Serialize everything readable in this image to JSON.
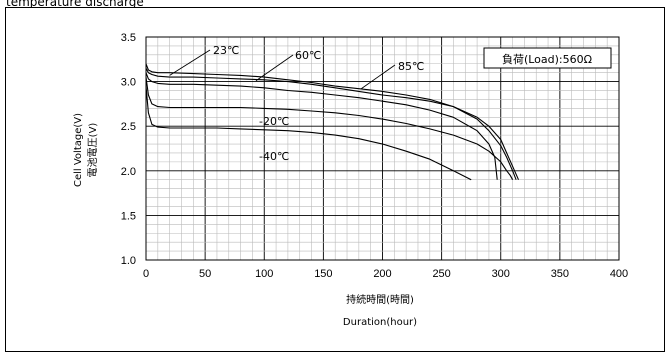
{
  "page": {
    "title": "temperature discharge"
  },
  "chart_data": {
    "type": "line",
    "xlabel_ja": "持続時間(時間)",
    "xlabel_en": "Duration(hour)",
    "ylabel_en": "Cell Voltage(V)",
    "ylabel_ja": "電池電圧(V)",
    "xlim": [
      0,
      400
    ],
    "ylim": [
      1.0,
      3.5
    ],
    "x_ticks": [
      "0",
      "50",
      "100",
      "150",
      "200",
      "250",
      "300",
      "350",
      "400"
    ],
    "y_ticks": [
      "1.0",
      "1.5",
      "2.0",
      "2.5",
      "3.0",
      "3.5"
    ],
    "grid": true,
    "load_label": "負荷(Load):560Ω",
    "series": [
      {
        "name": "23℃",
        "x": [
          0,
          2,
          5,
          10,
          20,
          40,
          60,
          80,
          100,
          120,
          140,
          160,
          180,
          200,
          220,
          240,
          260,
          280,
          290,
          300,
          305,
          310,
          313
        ],
        "y": [
          3.2,
          3.13,
          3.11,
          3.1,
          3.1,
          3.09,
          3.08,
          3.07,
          3.05,
          3.02,
          2.99,
          2.95,
          2.92,
          2.89,
          2.85,
          2.8,
          2.72,
          2.58,
          2.45,
          2.28,
          2.15,
          2.0,
          1.9
        ]
      },
      {
        "name": "60℃",
        "x": [
          0,
          2,
          5,
          10,
          20,
          40,
          60,
          80,
          100,
          120,
          140,
          160,
          180,
          200,
          220,
          240,
          260,
          280,
          290,
          300,
          305,
          310,
          315
        ],
        "y": [
          3.15,
          3.1,
          3.08,
          3.06,
          3.05,
          3.05,
          3.04,
          3.03,
          3.02,
          3.0,
          2.97,
          2.93,
          2.89,
          2.85,
          2.82,
          2.78,
          2.72,
          2.6,
          2.5,
          2.35,
          2.2,
          2.05,
          1.9
        ]
      },
      {
        "name": "85℃",
        "x": [
          0,
          2,
          5,
          10,
          20,
          40,
          60,
          80,
          100,
          120,
          140,
          160,
          180,
          200,
          220,
          240,
          260,
          280,
          290,
          295,
          297
        ],
        "y": [
          3.1,
          3.03,
          3.0,
          2.98,
          2.97,
          2.97,
          2.96,
          2.95,
          2.93,
          2.9,
          2.88,
          2.85,
          2.82,
          2.78,
          2.74,
          2.68,
          2.6,
          2.45,
          2.3,
          2.15,
          1.9
        ]
      },
      {
        "name": "-20℃",
        "x": [
          0,
          2,
          5,
          10,
          20,
          40,
          60,
          80,
          100,
          120,
          140,
          160,
          180,
          200,
          220,
          240,
          260,
          280,
          290,
          300,
          305,
          308,
          310
        ],
        "y": [
          3.05,
          2.85,
          2.75,
          2.72,
          2.71,
          2.71,
          2.71,
          2.71,
          2.7,
          2.69,
          2.67,
          2.65,
          2.62,
          2.58,
          2.53,
          2.47,
          2.4,
          2.3,
          2.22,
          2.1,
          2.0,
          1.95,
          1.9
        ]
      },
      {
        "name": "-40℃",
        "x": [
          0,
          2,
          5,
          10,
          20,
          40,
          60,
          80,
          100,
          120,
          140,
          160,
          180,
          200,
          220,
          240,
          260,
          275
        ],
        "y": [
          2.95,
          2.65,
          2.52,
          2.49,
          2.48,
          2.48,
          2.48,
          2.47,
          2.46,
          2.45,
          2.43,
          2.4,
          2.36,
          2.3,
          2.22,
          2.13,
          2.0,
          1.9
        ]
      }
    ]
  }
}
